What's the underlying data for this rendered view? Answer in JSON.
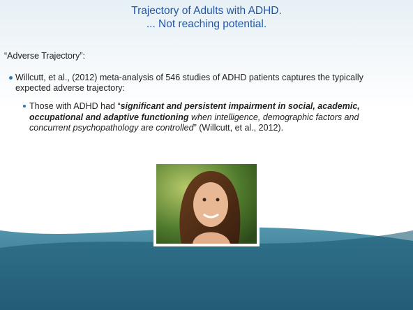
{
  "title": [
    "Trajectory of Adults with ADHD.",
    "... Not reaching potential."
  ],
  "heading": "“Adverse Trajectory”:",
  "bullet": "Willcutt, et al., (2012) meta-analysis of 546 studies of ADHD patients captures the typically expected adverse trajectory:",
  "sub_bullet": [
    "Those with ADHD had “",
    "significant and persistent impairment in social, academic, occupational and adaptive functioning",
    " when intelligence, demographic factors and concurrent psychopathology are controlled",
    "” (Willcutt, et al., 2012)."
  ]
}
